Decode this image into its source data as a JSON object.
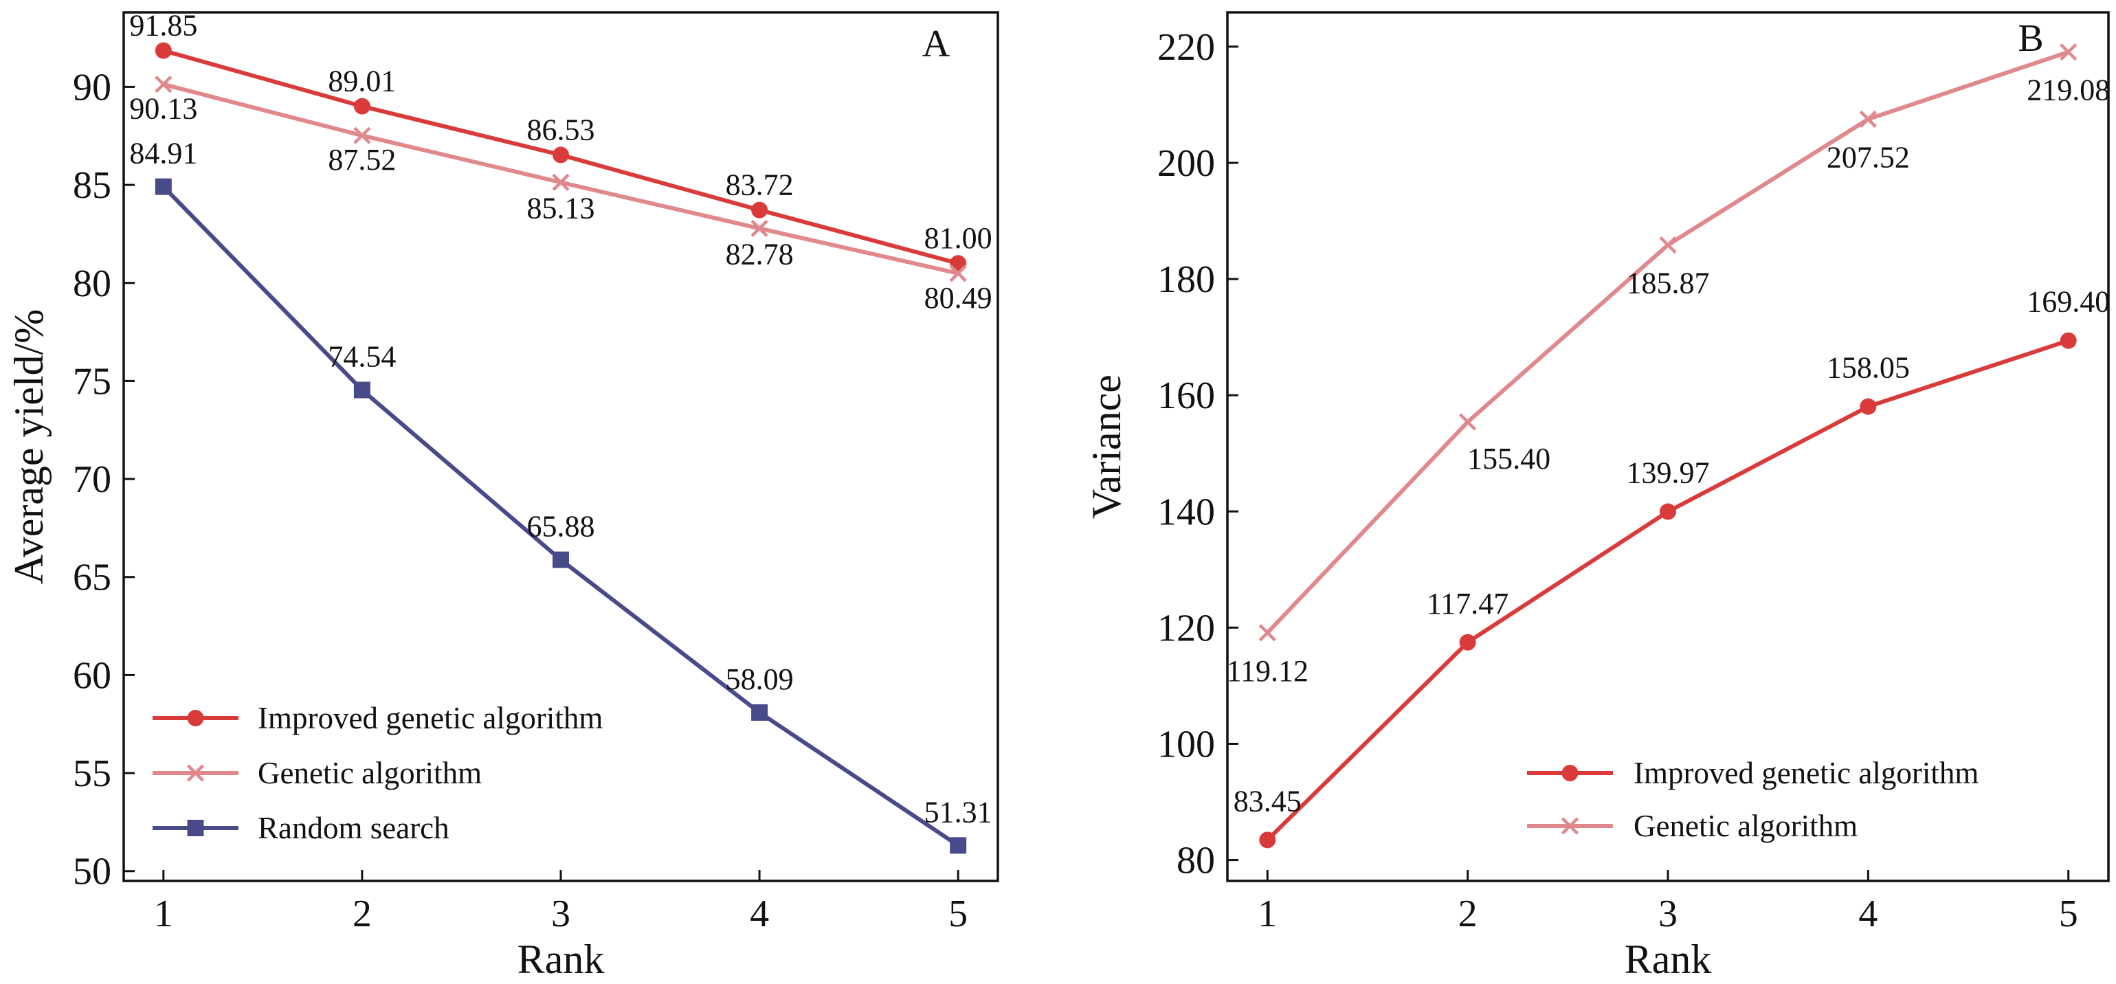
{
  "chart_data": [
    {
      "type": "line",
      "panel": "A",
      "xlabel": "Rank",
      "ylabel": "Average yield/%",
      "x": [
        1,
        2,
        3,
        4,
        5
      ],
      "xticks": [
        "1",
        "2",
        "3",
        "4",
        "5"
      ],
      "xlim": [
        0.8,
        5.2
      ],
      "ylim": [
        49.5,
        93.8
      ],
      "yticks": [
        "50",
        "55",
        "60",
        "65",
        "70",
        "75",
        "80",
        "85",
        "90"
      ],
      "grid": false,
      "legend_position": "bottom-left",
      "series": [
        {
          "name": "Improved genetic algorithm",
          "color": "#d93b3b",
          "marker": "circle",
          "values": [
            91.85,
            89.01,
            86.53,
            83.72,
            81.0
          ],
          "labels": [
            "91.85",
            "89.01",
            "86.53",
            "83.72",
            "81.00"
          ]
        },
        {
          "name": "Genetic algorithm",
          "color": "#e0888c",
          "marker": "x",
          "values": [
            90.13,
            87.52,
            85.13,
            82.78,
            80.49
          ],
          "labels": [
            "90.13",
            "87.52",
            "85.13",
            "82.78",
            "80.49"
          ]
        },
        {
          "name": "Random search",
          "color": "#484a8a",
          "marker": "square",
          "values": [
            84.91,
            74.54,
            65.88,
            58.09,
            51.31
          ],
          "labels": [
            "84.91",
            "74.54",
            "65.88",
            "58.09",
            "51.31"
          ]
        }
      ]
    },
    {
      "type": "line",
      "panel": "B",
      "xlabel": "Rank",
      "ylabel": "Variance",
      "x": [
        1,
        2,
        3,
        4,
        5
      ],
      "xticks": [
        "1",
        "2",
        "3",
        "4",
        "5"
      ],
      "xlim": [
        0.8,
        5.2
      ],
      "ylim": [
        76.4,
        225.9
      ],
      "yticks": [
        "80",
        "100",
        "120",
        "140",
        "160",
        "180",
        "200",
        "220"
      ],
      "grid": false,
      "legend_position": "bottom-right",
      "series": [
        {
          "name": "Improved genetic algorithm",
          "color": "#d93b3b",
          "marker": "circle",
          "values": [
            83.45,
            117.47,
            139.97,
            158.05,
            169.4
          ],
          "labels": [
            "83.45",
            "117.47",
            "139.97",
            "158.05",
            "169.40"
          ]
        },
        {
          "name": "Genetic algorithm",
          "color": "#e0888c",
          "marker": "x",
          "values": [
            119.12,
            155.4,
            185.87,
            207.52,
            219.08
          ],
          "labels": [
            "119.12",
            "155.40",
            "185.87",
            "207.52",
            "219.08"
          ]
        }
      ]
    }
  ]
}
